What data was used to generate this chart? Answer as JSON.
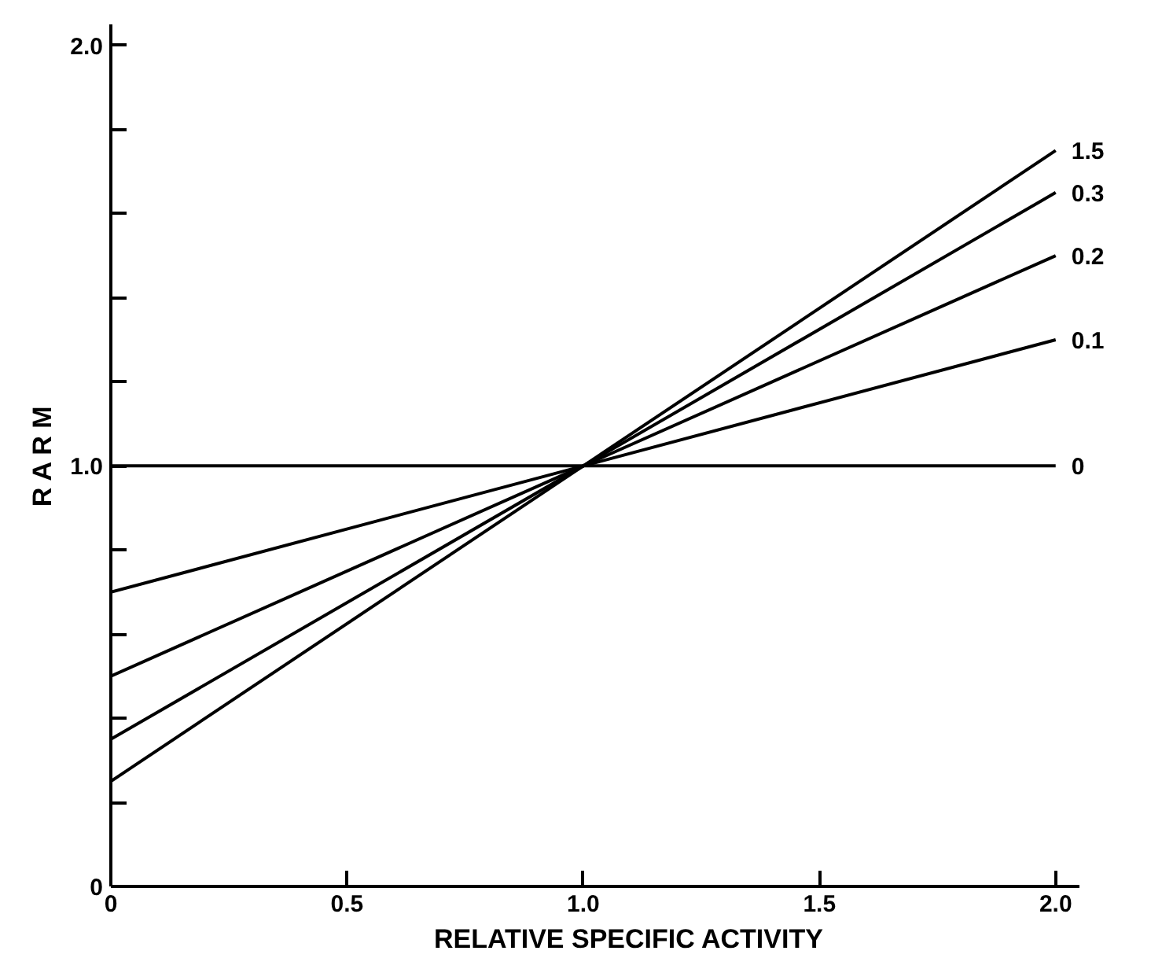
{
  "chart_data": {
    "type": "line",
    "xlabel": "RELATIVE SPECIFIC ACTIVITY",
    "ylabel": "R A R M",
    "x": [
      0,
      2.0
    ],
    "series": [
      {
        "name": "1.5",
        "color": "#000000",
        "values": [
          0.25,
          1.75
        ]
      },
      {
        "name": "0.3",
        "color": "#000000",
        "values": [
          0.35,
          1.65
        ]
      },
      {
        "name": "0.2",
        "color": "#000000",
        "values": [
          0.5,
          1.5
        ]
      },
      {
        "name": "0.1",
        "color": "#000000",
        "values": [
          0.7,
          1.3
        ]
      },
      {
        "name": "0",
        "color": "#000000",
        "values": [
          1.0,
          1.0
        ]
      }
    ],
    "xlim": [
      0,
      2.05
    ],
    "ylim": [
      0,
      2.05
    ],
    "xticks": [
      {
        "value": 0,
        "label": "0"
      },
      0.5,
      {
        "value": 1,
        "label": "1.0"
      },
      1.5,
      {
        "value": 2,
        "label": "2.0"
      }
    ],
    "yticks": [
      {
        "value": 0,
        "label": "0"
      },
      {
        "value": 0.2,
        "label": null
      },
      {
        "value": 0.4,
        "label": null
      },
      {
        "value": 0.6,
        "label": null
      },
      {
        "value": 0.8,
        "label": null
      },
      {
        "value": 1,
        "label": "1.0"
      },
      {
        "value": 1.2,
        "label": null
      },
      {
        "value": 1.4,
        "label": null
      },
      {
        "value": 1.6,
        "label": null
      },
      {
        "value": 1.8,
        "label": null
      },
      {
        "value": 2,
        "label": "2.0"
      }
    ],
    "grid": false,
    "marker": "none",
    "line_style": "solid"
  }
}
